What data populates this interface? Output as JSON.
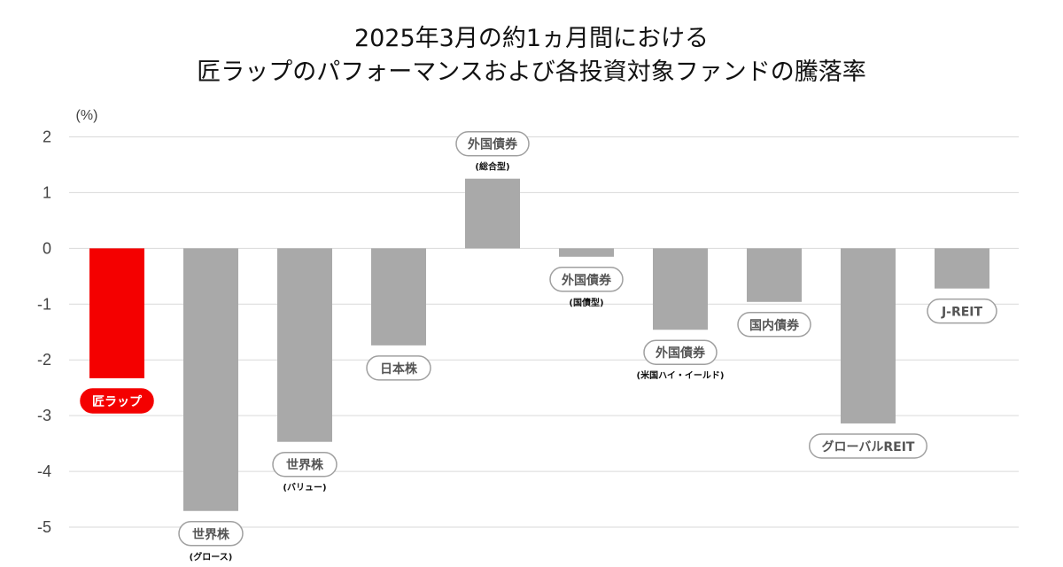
{
  "chart_data": {
    "type": "bar",
    "title": [
      "2025年3月の約1ヵ月間における",
      "匠ラップのパフォーマンスおよび各投資対象ファンドの騰落率"
    ],
    "ylabel": "(%)",
    "ylim": [
      -5,
      2
    ],
    "yticks": [
      "2",
      "1",
      "0",
      "-1",
      "-2",
      "-3",
      "-4",
      "-5"
    ],
    "grid": true,
    "categories": [
      {
        "label": "匠ラップ",
        "sub": "",
        "value": -2.33,
        "highlight": true
      },
      {
        "label": "世界株",
        "sub": "(グロース)",
        "value": -4.71,
        "highlight": false
      },
      {
        "label": "世界株",
        "sub": "(バリュー)",
        "value": -3.47,
        "highlight": false
      },
      {
        "label": "日本株",
        "sub": "",
        "value": -1.74,
        "highlight": false
      },
      {
        "label": "外国債券",
        "sub": "(総合型)",
        "value": 1.25,
        "highlight": false
      },
      {
        "label": "外国債券",
        "sub": "(国債型)",
        "value": -0.15,
        "highlight": false
      },
      {
        "label": "外国債券",
        "sub": "(米国ハイ・イールド)",
        "value": -1.46,
        "highlight": false
      },
      {
        "label": "国内債券",
        "sub": "",
        "value": -0.96,
        "highlight": false
      },
      {
        "label": "グローバルREIT",
        "sub": "",
        "value": -3.14,
        "highlight": false
      },
      {
        "label": "J-REIT",
        "sub": "",
        "value": -0.72,
        "highlight": false
      }
    ],
    "colors": {
      "highlight_bar": "#f40000",
      "bar": "#a9a9a9",
      "grid": "#d9d9d9",
      "pill_border": "#a0a0a0",
      "pill_text": "#555555"
    }
  }
}
